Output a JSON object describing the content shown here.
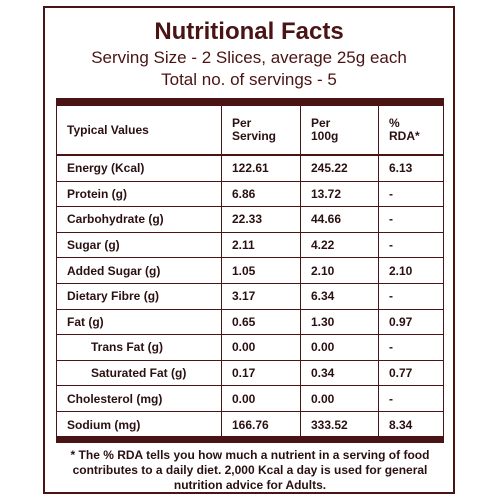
{
  "label": {
    "title": "Nutritional Facts",
    "serving_size": "Serving Size - 2 Slices, average 25g each",
    "servings_total": "Total no. of servings - 5"
  },
  "table": {
    "headers": {
      "col1": "Typical Values",
      "col2_line1": "Per",
      "col2_line2": "Serving",
      "col3_line1": "Per",
      "col3_line2": "100g",
      "col4_line1": "%",
      "col4_line2": "RDA*"
    },
    "rows": [
      {
        "name": "Energy (Kcal)",
        "per_serving": "122.61",
        "per_100g": "245.22",
        "rda": "6.13"
      },
      {
        "name": "Protein (g)",
        "per_serving": "6.86",
        "per_100g": "13.72",
        "rda": "-"
      },
      {
        "name": "Carbohydrate (g)",
        "per_serving": "22.33",
        "per_100g": "44.66",
        "rda": "-"
      },
      {
        "name": "Sugar (g)",
        "per_serving": "2.11",
        "per_100g": "4.22",
        "rda": "-"
      },
      {
        "name": "Added Sugar (g)",
        "per_serving": "1.05",
        "per_100g": "2.10",
        "rda": "2.10"
      },
      {
        "name": "Dietary Fibre (g)",
        "per_serving": "3.17",
        "per_100g": "6.34",
        "rda": "-"
      },
      {
        "name": "Fat (g)",
        "per_serving": "0.65",
        "per_100g": "1.30",
        "rda": "0.97"
      },
      {
        "name": "Trans Fat (g)",
        "per_serving": "0.00",
        "per_100g": "0.00",
        "rda": "-"
      },
      {
        "name": "Saturated Fat (g)",
        "per_serving": "0.17",
        "per_100g": "0.34",
        "rda": "0.77"
      },
      {
        "name": "Cholesterol (mg)",
        "per_serving": "0.00",
        "per_100g": "0.00",
        "rda": "-"
      },
      {
        "name": "Sodium (mg)",
        "per_serving": "166.76",
        "per_100g": "333.52",
        "rda": "8.34"
      }
    ]
  },
  "footnote": "* The % RDA tells you how much a nutrient in a serving of food contributes to a daily diet. 2,000 Kcal a day is used for general nutrition advice for Adults.",
  "colors": {
    "border": "#4a1414",
    "text": "#2a1010"
  }
}
